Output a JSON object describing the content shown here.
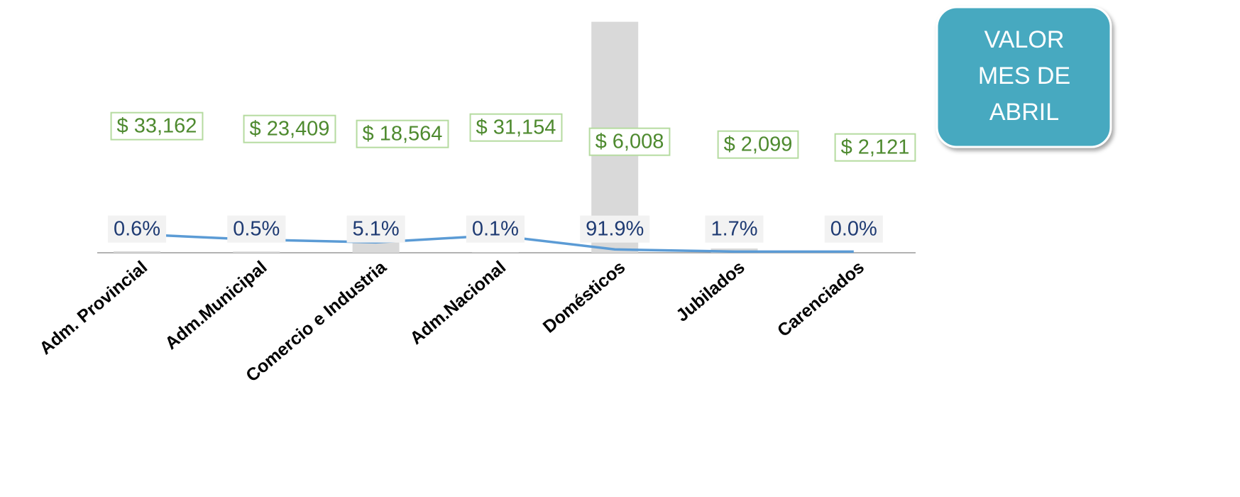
{
  "chart_data": {
    "type": "bar",
    "categories": [
      "Adm. Provincial",
      "Adm.Municipal",
      "Comercio e Industria",
      "Adm.Nacional",
      "Domésticos",
      "Jubilados",
      "Carenciados"
    ],
    "series": [
      {
        "type": "bar",
        "color": "#d9d9d9",
        "values": [
          0.6,
          0.5,
          5.1,
          0.1,
          91.9,
          1.7,
          0.0
        ],
        "value_labels": [
          "0.6%",
          "0.5%",
          "5.1%",
          "0.1%",
          "91.9%",
          "1.7%",
          "0.0%"
        ]
      },
      {
        "type": "line",
        "axis": "y2",
        "color": "#5b9bd5",
        "values": [
          33162,
          23409,
          18564,
          31154,
          6008,
          2099,
          2121
        ],
        "value_labels": [
          "$ 33,162",
          "$ 23,409",
          "$ 18,564",
          "$ 31,154",
          "$ 6,008",
          "$ 2,099",
          "$ 2,121"
        ]
      }
    ],
    "ylim": [
      0,
      100
    ],
    "y2lim": [
      0,
      450000
    ]
  },
  "badge": {
    "lines": [
      "VALOR",
      "MES DE",
      "ABRIL"
    ],
    "color": "#46a9c0"
  }
}
